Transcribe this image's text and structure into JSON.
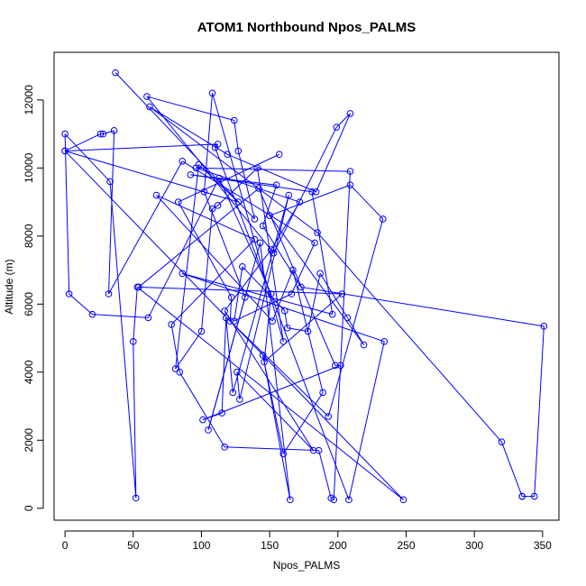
{
  "chart_data": {
    "type": "line",
    "title": "ATOM1 Northbound Npos_PALMS",
    "xlabel": "Npos_PALMS",
    "ylabel": "Altitude (m)",
    "xlim": [
      -8,
      362
    ],
    "ylim": [
      -350,
      13400
    ],
    "x_ticks": [
      0,
      50,
      100,
      150,
      200,
      250,
      300,
      350
    ],
    "y_ticks": [
      0,
      2000,
      4000,
      6000,
      8000,
      10000,
      12000
    ],
    "grid": false,
    "legend": "none",
    "series": [
      {
        "color": "#0000ff",
        "marker": "open-circle",
        "x": [
          37,
          139,
          127,
          124,
          60,
          153,
          199,
          209,
          184,
          119,
          62,
          185,
          320,
          335,
          335,
          344,
          351,
          173,
          145,
          155,
          92,
          181,
          196,
          86,
          234,
          208,
          110,
          112,
          0,
          248,
          53,
          50,
          52,
          33,
          0,
          3,
          20,
          61,
          113,
          151,
          146,
          203,
          54,
          142,
          198,
          202,
          101,
          115,
          118,
          123,
          164,
          128,
          126,
          182,
          117,
          151,
          172,
          96,
          209,
          197,
          195,
          186,
          117,
          84,
          78,
          139,
          67,
          152,
          167,
          189,
          160,
          145,
          165,
          143,
          105,
          132,
          102,
          108,
          160,
          141,
          112,
          108,
          100,
          81,
          98,
          127,
          0,
          26,
          28,
          36,
          32,
          86,
          183,
          166,
          124,
          130,
          161,
          163,
          178,
          187,
          207,
          219,
          150,
          209,
          233,
          193,
          121,
          122,
          83,
          157
        ],
        "y": [
          12800,
          8500,
          10500,
          11400,
          12100,
          7500,
          11200,
          11600,
          9300,
          10400,
          11800,
          8100,
          1950,
          350,
          350,
          350,
          5350,
          6500,
          8300,
          9500,
          9800,
          9300,
          5700,
          6900,
          4900,
          250,
          10600,
          10700,
          10500,
          250,
          6500,
          4900,
          300,
          9600,
          11000,
          6300,
          5700,
          5600,
          9700,
          6300,
          4300,
          6300,
          6500,
          9400,
          4200,
          4200,
          2600,
          2800,
          5600,
          3400,
          9200,
          3200,
          4000,
          1700,
          5800,
          7600,
          9000,
          10000,
          9900,
          250,
          300,
          1700,
          1800,
          4000,
          5400,
          7900,
          9200,
          5500,
          7000,
          3400,
          1600,
          4500,
          250,
          7800,
          2300,
          6200,
          9300,
          12200,
          4900,
          10000,
          8900,
          8800,
          5200,
          4100,
          10100,
          9000,
          10500,
          11000,
          11000,
          11100,
          6300,
          10200,
          7800,
          6300,
          5500,
          7100,
          5800,
          5300,
          5200,
          6900,
          5600,
          4800,
          8600,
          9500,
          8500,
          2700,
          5500,
          6200,
          9000,
          10400
        ]
      }
    ]
  }
}
